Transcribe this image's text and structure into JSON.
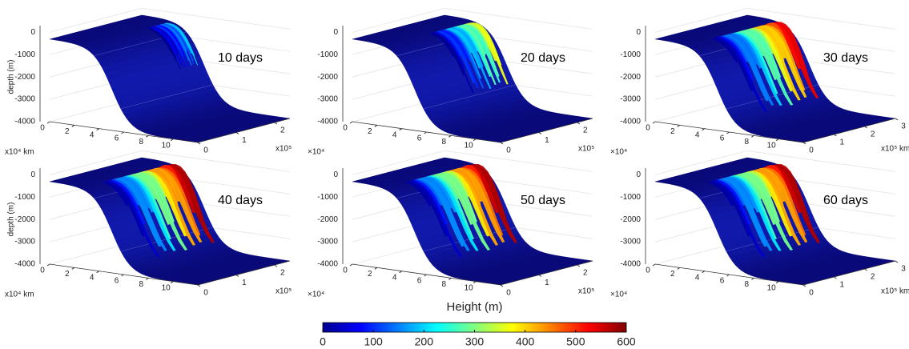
{
  "chart_data": [
    {
      "type": "surface",
      "title": "10 days",
      "zlabel": "depth (m)",
      "zlim": [
        -4000,
        300
      ],
      "zticks": [
        0,
        -1000,
        -2000,
        -3000,
        -4000
      ],
      "xlim": [
        0,
        12
      ],
      "xticks": [
        0,
        2,
        4,
        6,
        8,
        10
      ],
      "xlabel": "x10⁴ km",
      "ylim": [
        0,
        2.4
      ],
      "yticks": [
        0,
        1,
        2
      ],
      "ylabel": "x10⁵"
    },
    {
      "type": "surface",
      "title": "20 days",
      "zlim": [
        -4000,
        300
      ],
      "zticks": [
        0,
        -1000,
        -2000,
        -3000,
        -4000
      ],
      "xlim": [
        0,
        12
      ],
      "xticks": [
        0,
        2,
        4,
        6,
        8,
        10
      ],
      "xlabel": "×10⁴",
      "ylim": [
        0,
        2.4
      ],
      "yticks": [
        0,
        1,
        2
      ],
      "ylabel": "x10⁵"
    },
    {
      "type": "surface",
      "title": "30 days",
      "zlim": [
        -4000,
        300
      ],
      "zticks": [
        0,
        -1000,
        -2000,
        -3000,
        -4000
      ],
      "xlim": [
        0,
        12
      ],
      "xticks": [
        0,
        2,
        4,
        6,
        8,
        10
      ],
      "xlabel": "×10⁴",
      "ylim": [
        0,
        3
      ],
      "yticks": [
        0,
        1,
        2,
        3
      ],
      "ylabel": "x10⁵ km"
    },
    {
      "type": "surface",
      "title": "40 days",
      "zlabel": "depth (m)",
      "zlim": [
        -4000,
        300
      ],
      "zticks": [
        0,
        -1000,
        -2000,
        -3000,
        -4000
      ],
      "xlim": [
        0,
        12
      ],
      "xticks": [
        0,
        2,
        4,
        6,
        8,
        10
      ],
      "xlabel": "x10⁴ km",
      "ylim": [
        0,
        2.4
      ],
      "yticks": [
        0,
        1,
        2
      ],
      "ylabel": "x10⁵"
    },
    {
      "type": "surface",
      "title": "50 days",
      "zlim": [
        -4000,
        300
      ],
      "zticks": [
        0,
        -1000,
        -2000,
        -3000,
        -4000
      ],
      "xlim": [
        0,
        12
      ],
      "xticks": [
        0,
        2,
        4,
        6,
        8,
        10
      ],
      "xlabel": "×10⁴",
      "ylim": [
        0,
        2.4
      ],
      "yticks": [
        0,
        1,
        2
      ],
      "ylabel": "x10⁵"
    },
    {
      "type": "surface",
      "title": "60 days",
      "zlim": [
        -4000,
        300
      ],
      "zticks": [
        0,
        -1000,
        -2000,
        -3000,
        -4000
      ],
      "xlim": [
        0,
        12
      ],
      "xticks": [
        0,
        2,
        4,
        6,
        8,
        10
      ],
      "xlabel": "×10⁴",
      "ylim": [
        0,
        3
      ],
      "yticks": [
        0,
        1,
        2,
        3
      ],
      "ylabel": "x10⁵ km"
    },
    {
      "type": "colorbar",
      "title": "Height (m)",
      "lim": [
        0,
        600
      ],
      "ticks": [
        0,
        100,
        200,
        300,
        400,
        500,
        600
      ],
      "colors": [
        "#00008f",
        "#0000ff",
        "#0080ff",
        "#00ffff",
        "#80ff80",
        "#ffff00",
        "#ff8000",
        "#ff0000",
        "#800000"
      ]
    }
  ]
}
